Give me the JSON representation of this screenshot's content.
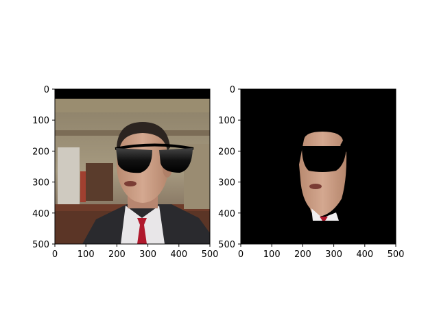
{
  "figure": {
    "panels": [
      {
        "id": "left",
        "content": "photo-with-sunglasses-overlay",
        "x_ticks": [
          "0",
          "100",
          "200",
          "300",
          "400",
          "500"
        ],
        "y_ticks": [
          "0",
          "100",
          "200",
          "300",
          "400",
          "500"
        ]
      },
      {
        "id": "right",
        "content": "face-mask-with-sunglasses",
        "x_ticks": [
          "0",
          "100",
          "200",
          "300",
          "400",
          "500"
        ],
        "y_ticks": [
          "0",
          "100",
          "200",
          "300",
          "400",
          "500"
        ]
      }
    ]
  },
  "colors": {
    "background": "#000000",
    "sunglasses": "#111111",
    "tie": "#b0182c",
    "suit": "#2a2a2e",
    "skin": "#c69a82"
  }
}
